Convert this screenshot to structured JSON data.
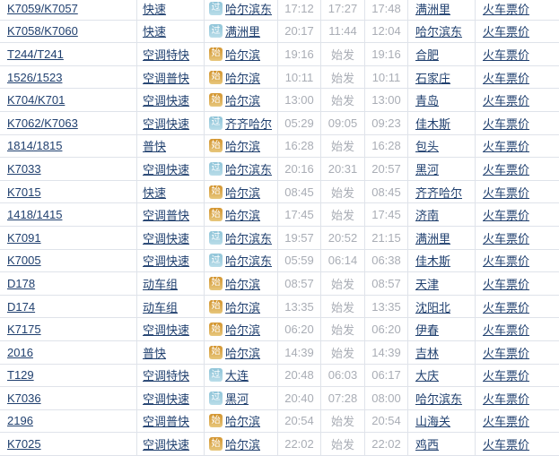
{
  "colors": {
    "link": "#20406f",
    "time_text": "#a9adb5",
    "border": "#dfe3ea",
    "flag_pass_bg": "#a3cede",
    "flag_start_bg": "#d9a74a",
    "flag_text": "#ffffff"
  },
  "table": {
    "ticket_price_label": "火车票价",
    "origin_flag_legend": {
      "pass": "过",
      "start": "始"
    },
    "rows": [
      {
        "train_no": "K7059/K7057",
        "type": "快速",
        "origin_flag": "过",
        "origin": "哈尔滨东",
        "times": [
          "17:12",
          "17:27",
          "17:48"
        ],
        "destination": "满洲里"
      },
      {
        "train_no": "K7058/K7060",
        "type": "快速",
        "origin_flag": "过",
        "origin": "满洲里",
        "times": [
          "20:17",
          "11:44",
          "12:04"
        ],
        "destination": "哈尔滨东"
      },
      {
        "train_no": "T244/T241",
        "type": "空调特快",
        "origin_flag": "始",
        "origin": "哈尔滨",
        "times": [
          "19:16",
          "始发",
          "19:16"
        ],
        "destination": "合肥"
      },
      {
        "train_no": "1526/1523",
        "type": "空调普快",
        "origin_flag": "始",
        "origin": "哈尔滨",
        "times": [
          "10:11",
          "始发",
          "10:11"
        ],
        "destination": "石家庄"
      },
      {
        "train_no": "K704/K701",
        "type": "空调快速",
        "origin_flag": "始",
        "origin": "哈尔滨",
        "times": [
          "13:00",
          "始发",
          "13:00"
        ],
        "destination": "青岛"
      },
      {
        "train_no": "K7062/K7063",
        "type": "空调快速",
        "origin_flag": "过",
        "origin": "齐齐哈尔",
        "times": [
          "05:29",
          "09:05",
          "09:23"
        ],
        "destination": "佳木斯"
      },
      {
        "train_no": "1814/1815",
        "type": "普快",
        "origin_flag": "始",
        "origin": "哈尔滨",
        "times": [
          "16:28",
          "始发",
          "16:28"
        ],
        "destination": "包头"
      },
      {
        "train_no": "K7033",
        "type": "空调快速",
        "origin_flag": "过",
        "origin": "哈尔滨东",
        "times": [
          "20:16",
          "20:31",
          "20:57"
        ],
        "destination": "黑河"
      },
      {
        "train_no": "K7015",
        "type": "快速",
        "origin_flag": "始",
        "origin": "哈尔滨",
        "times": [
          "08:45",
          "始发",
          "08:45"
        ],
        "destination": "齐齐哈尔"
      },
      {
        "train_no": "1418/1415",
        "type": "空调普快",
        "origin_flag": "始",
        "origin": "哈尔滨",
        "times": [
          "17:45",
          "始发",
          "17:45"
        ],
        "destination": "济南"
      },
      {
        "train_no": "K7091",
        "type": "空调快速",
        "origin_flag": "过",
        "origin": "哈尔滨东",
        "times": [
          "19:57",
          "20:52",
          "21:15"
        ],
        "destination": "满洲里"
      },
      {
        "train_no": "K7005",
        "type": "空调快速",
        "origin_flag": "过",
        "origin": "哈尔滨东",
        "times": [
          "05:59",
          "06:14",
          "06:38"
        ],
        "destination": "佳木斯"
      },
      {
        "train_no": "D178",
        "type": "动车组",
        "origin_flag": "始",
        "origin": "哈尔滨",
        "times": [
          "08:57",
          "始发",
          "08:57"
        ],
        "destination": "天津"
      },
      {
        "train_no": "D174",
        "type": "动车组",
        "origin_flag": "始",
        "origin": "哈尔滨",
        "times": [
          "13:35",
          "始发",
          "13:35"
        ],
        "destination": "沈阳北"
      },
      {
        "train_no": "K7175",
        "type": "空调快速",
        "origin_flag": "始",
        "origin": "哈尔滨",
        "times": [
          "06:20",
          "始发",
          "06:20"
        ],
        "destination": "伊春"
      },
      {
        "train_no": "2016",
        "type": "普快",
        "origin_flag": "始",
        "origin": "哈尔滨",
        "times": [
          "14:39",
          "始发",
          "14:39"
        ],
        "destination": "吉林"
      },
      {
        "train_no": "T129",
        "type": "空调特快",
        "origin_flag": "过",
        "origin": "大连",
        "times": [
          "20:48",
          "06:03",
          "06:17"
        ],
        "destination": "大庆"
      },
      {
        "train_no": "K7036",
        "type": "空调快速",
        "origin_flag": "过",
        "origin": "黑河",
        "times": [
          "20:40",
          "07:28",
          "08:00"
        ],
        "destination": "哈尔滨东"
      },
      {
        "train_no": "2196",
        "type": "空调普快",
        "origin_flag": "始",
        "origin": "哈尔滨",
        "times": [
          "20:54",
          "始发",
          "20:54"
        ],
        "destination": "山海关"
      },
      {
        "train_no": "K7025",
        "type": "空调快速",
        "origin_flag": "始",
        "origin": "哈尔滨",
        "times": [
          "22:02",
          "始发",
          "22:02"
        ],
        "destination": "鸡西"
      }
    ]
  }
}
